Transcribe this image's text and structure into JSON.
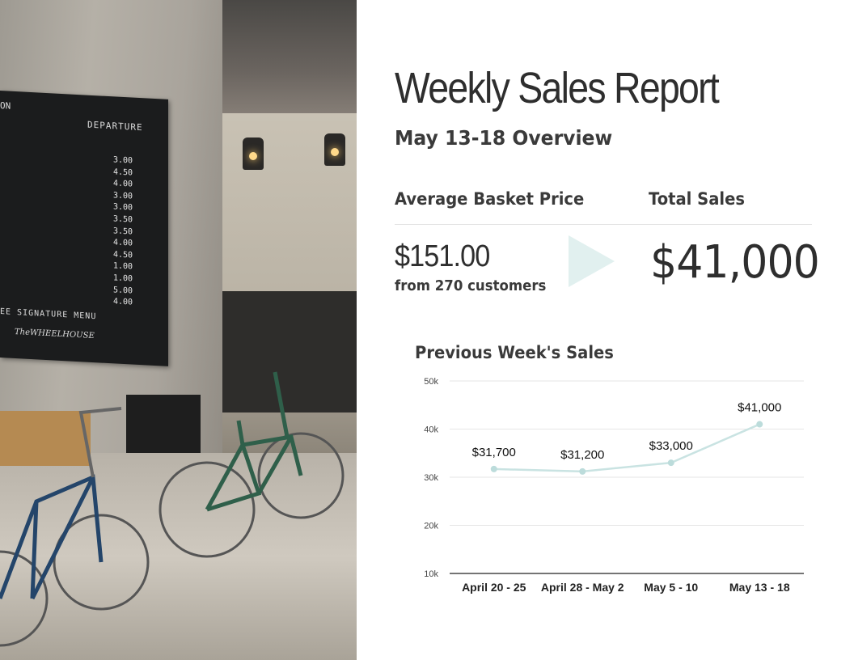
{
  "report": {
    "title": "Weekly Sales Report",
    "subtitle": "May 13-18 Overview"
  },
  "photo": {
    "board_title": "DEPARTURE",
    "board_prices": [
      "3.00",
      "4.50",
      "4.00",
      "3.00",
      "3.00",
      "3.50",
      "3.50",
      "4.00",
      "4.50",
      "1.00",
      "1.00",
      "5.00",
      "4.00"
    ],
    "board_footer": "EE SIGNATURE MENU",
    "board_brand": "TheWHEELHOUSE",
    "board_edge": "ON"
  },
  "metrics": {
    "basket_label": "Average Basket Price",
    "basket_value": "$151.00",
    "basket_sub": "from 270 customers",
    "total_label": "Total Sales",
    "total_value": "$41,000"
  },
  "colors": {
    "line": "#c9e3e2",
    "point": "#bcdcdb",
    "arrow": "#e1f0ef",
    "grid": "#e6e6e6"
  },
  "chart_data": {
    "type": "line",
    "title": "Previous Week's Sales",
    "categories": [
      "April 20 - 25",
      "April 28 - May 2",
      "May 5 - 10",
      "May 13 - 18"
    ],
    "series": [
      {
        "values": [
          31700,
          31200,
          33000,
          41000
        ]
      }
    ],
    "data_labels": [
      "$31,700",
      "$31,200",
      "$33,000",
      "$41,000"
    ],
    "y_ticks": [
      10000,
      20000,
      30000,
      40000,
      50000
    ],
    "y_tick_labels": [
      "10k",
      "20k",
      "30k",
      "40k",
      "50k"
    ],
    "ylim": [
      10000,
      50000
    ],
    "grid": true,
    "xlabel": "",
    "ylabel": ""
  }
}
